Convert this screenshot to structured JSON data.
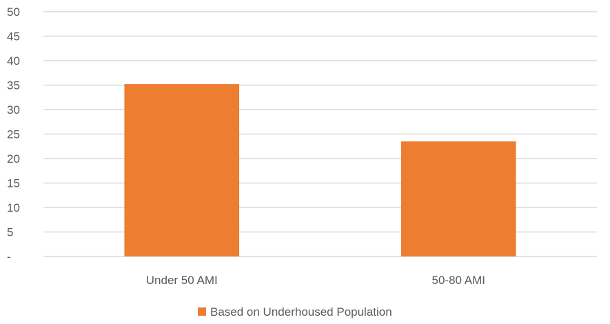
{
  "chart_data": {
    "type": "bar",
    "categories": [
      "Under 50 AMI",
      "50-80 AMI"
    ],
    "series": [
      {
        "name": "Based on Underhoused Population",
        "values": [
          35.2,
          23.5
        ],
        "color": "#ED7D31"
      }
    ],
    "y_ticks": [
      "-",
      "5",
      "10",
      "15",
      "20",
      "25",
      "30",
      "35",
      "40",
      "45",
      "50"
    ],
    "ylim": [
      0,
      50
    ],
    "grid": true,
    "legend": "bottom-center",
    "gridline_color": "#d9d9d9",
    "text_color": "#595959"
  }
}
